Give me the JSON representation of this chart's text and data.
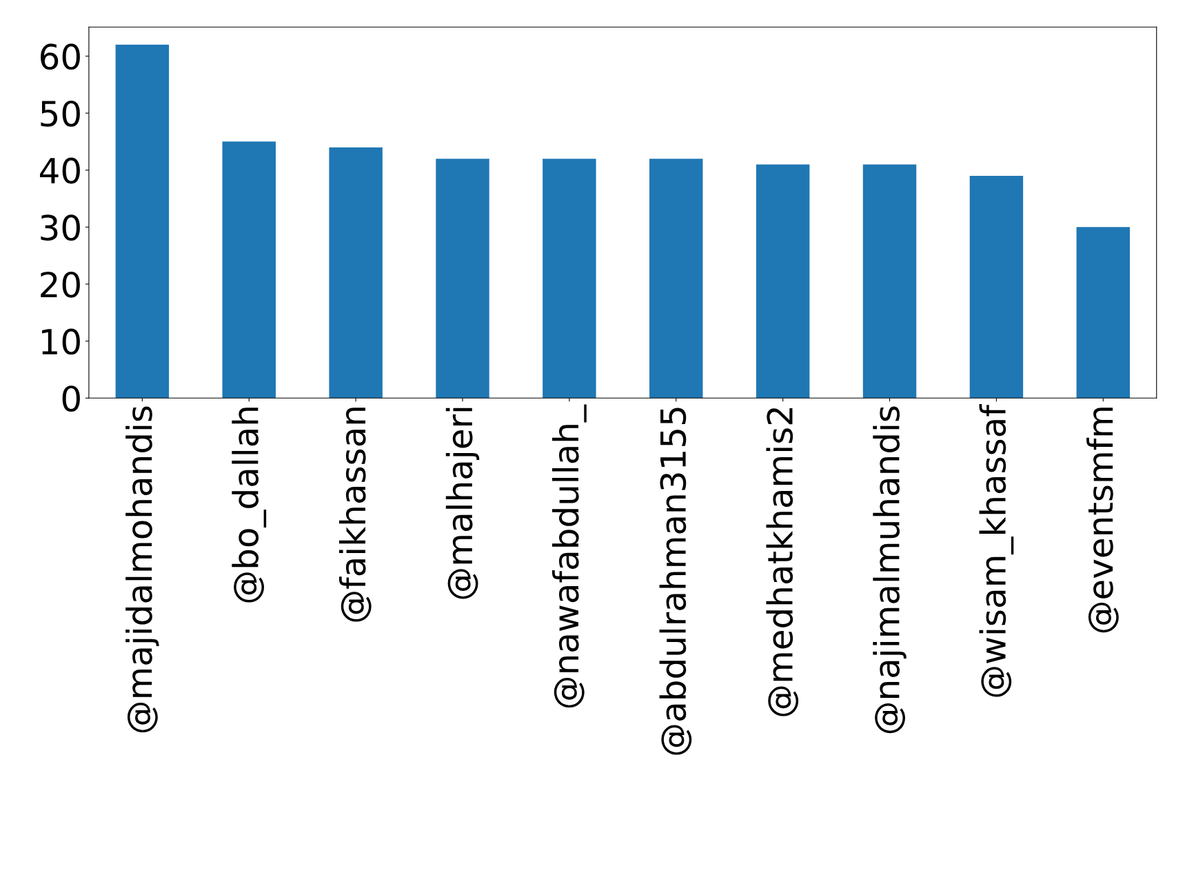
{
  "chart_data": {
    "type": "bar",
    "categories": [
      "@majidalmohandis",
      "@bo_dallah",
      "@faikhassan",
      "@malhajeri",
      "@nawafabdullah_",
      "@abdulrahman3155",
      "@medhatkhamis2",
      "@najimalmuhandis",
      "@wisam_khassaf",
      "@eventsmfm"
    ],
    "values": [
      62,
      45,
      44,
      42,
      42,
      42,
      41,
      41,
      39,
      30
    ],
    "color": "#1f77b4",
    "ylim": [
      0,
      65.1
    ],
    "yticks": [
      0,
      10,
      20,
      30,
      40,
      50,
      60
    ],
    "grid": false,
    "legend": false
  }
}
